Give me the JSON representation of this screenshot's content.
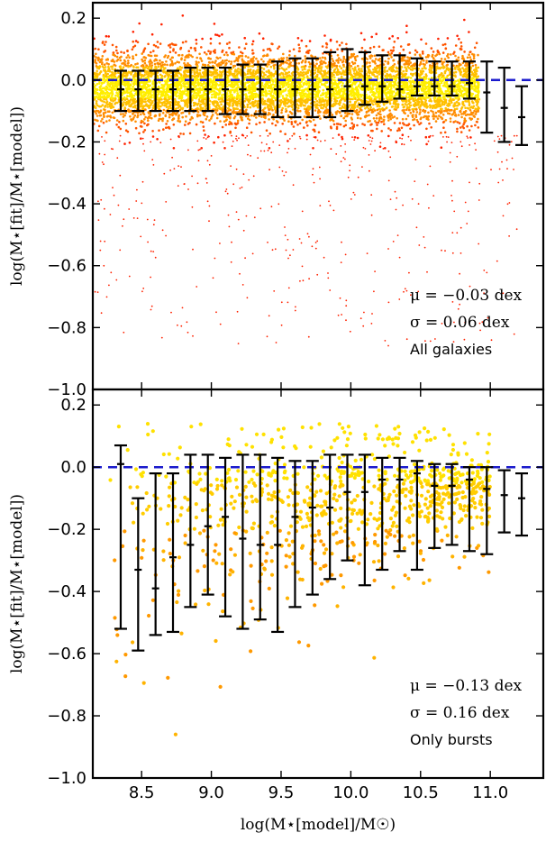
{
  "chart_data": [
    {
      "type": "scatter",
      "panel": "top",
      "xlabel": "",
      "ylabel": "log(M⋆[fit]/M⋆[model])",
      "xlim": [
        8.15,
        11.38
      ],
      "ylim": [
        -1.0,
        0.25
      ],
      "yticks": [
        0.2,
        0.0,
        -0.2,
        -0.4,
        -0.6,
        -0.8,
        -1.0
      ],
      "ytick_labels": [
        "0.2",
        "0.0",
        "−0.2",
        "−0.4",
        "−0.6",
        "−0.8",
        "−1.0"
      ],
      "reference_line": {
        "y": 0.0,
        "color": "#1a1acc",
        "style": "dashed"
      },
      "scatter_colors": [
        "#ff2200",
        "#ff5500",
        "#ff8c00",
        "#ffc000",
        "#ffee00"
      ],
      "scatter_density": "very dense band around y=0 spanning x 8.15 to 10.9, spread ±0.15, sparse outliers down to −0.85",
      "error_bars": {
        "x": [
          8.35,
          8.475,
          8.6,
          8.725,
          8.85,
          8.975,
          9.1,
          9.225,
          9.35,
          9.475,
          9.6,
          9.725,
          9.85,
          9.975,
          10.1,
          10.225,
          10.35,
          10.475,
          10.6,
          10.725,
          10.85,
          10.975,
          11.1,
          11.225
        ],
        "median": [
          -0.03,
          -0.03,
          -0.03,
          -0.03,
          -0.03,
          -0.03,
          -0.03,
          -0.03,
          -0.03,
          -0.03,
          -0.03,
          -0.03,
          -0.03,
          -0.02,
          -0.02,
          -0.02,
          -0.03,
          -0.02,
          -0.02,
          -0.02,
          -0.01,
          -0.04,
          -0.09,
          -0.12
        ],
        "upper": [
          0.03,
          0.03,
          0.03,
          0.03,
          0.04,
          0.04,
          0.04,
          0.05,
          0.05,
          0.06,
          0.07,
          0.07,
          0.09,
          0.1,
          0.09,
          0.08,
          0.08,
          0.07,
          0.06,
          0.06,
          0.06,
          0.06,
          0.04,
          -0.02
        ],
        "lower": [
          -0.1,
          -0.1,
          -0.1,
          -0.1,
          -0.1,
          -0.1,
          -0.11,
          -0.11,
          -0.11,
          -0.12,
          -0.12,
          -0.12,
          -0.12,
          -0.1,
          -0.08,
          -0.07,
          -0.06,
          -0.05,
          -0.05,
          -0.05,
          -0.06,
          -0.17,
          -0.2,
          -0.21
        ]
      },
      "annotations": [
        {
          "text": "μ = −0.03 dex",
          "style": "math"
        },
        {
          "text": "σ = 0.06 dex",
          "style": "math"
        },
        {
          "text": "All galaxies",
          "style": "text"
        }
      ]
    },
    {
      "type": "scatter",
      "panel": "bottom",
      "xlabel": "log(M⋆[model]/M☉)",
      "ylabel": "log(M⋆[fit]/M⋆[model])",
      "xlim": [
        8.15,
        11.38
      ],
      "ylim": [
        -1.0,
        0.25
      ],
      "xticks": [
        8.5,
        9.0,
        9.5,
        10.0,
        10.5,
        11.0
      ],
      "xtick_labels": [
        "8.5",
        "9.0",
        "9.5",
        "10.0",
        "10.5",
        "11.0"
      ],
      "yticks": [
        0.2,
        0.0,
        -0.2,
        -0.4,
        -0.6,
        -0.8,
        -1.0
      ],
      "ytick_labels": [
        "0.2",
        "0.0",
        "−0.2",
        "−0.4",
        "−0.6",
        "−0.8",
        "−1.0"
      ],
      "reference_line": {
        "y": 0.0,
        "color": "#1a1acc",
        "style": "dashed"
      },
      "scatter_colors": [
        "#ff9900",
        "#ffb300",
        "#ffcc00",
        "#ffe100"
      ],
      "scatter_density": "scattered points, denser near y=0 at higher x, spread down to −0.85",
      "error_bars": {
        "x": [
          8.35,
          8.475,
          8.6,
          8.725,
          8.85,
          8.975,
          9.1,
          9.225,
          9.35,
          9.475,
          9.6,
          9.725,
          9.85,
          9.975,
          10.1,
          10.225,
          10.35,
          10.475,
          10.6,
          10.725,
          10.85,
          10.975,
          11.1,
          11.225
        ],
        "median": [
          0.01,
          -0.33,
          -0.39,
          -0.29,
          -0.25,
          -0.19,
          -0.16,
          -0.23,
          -0.25,
          -0.25,
          -0.16,
          -0.13,
          -0.13,
          -0.08,
          -0.08,
          -0.04,
          -0.04,
          -0.02,
          -0.06,
          -0.06,
          -0.04,
          -0.07,
          -0.09,
          -0.1
        ],
        "upper": [
          0.07,
          -0.1,
          -0.02,
          -0.02,
          0.04,
          0.04,
          0.03,
          0.04,
          0.04,
          0.03,
          0.02,
          0.02,
          0.04,
          0.04,
          0.04,
          0.03,
          0.03,
          0.02,
          0.01,
          0.01,
          0.0,
          0.0,
          -0.01,
          -0.02
        ],
        "lower": [
          -0.52,
          -0.59,
          -0.54,
          -0.53,
          -0.45,
          -0.41,
          -0.48,
          -0.52,
          -0.49,
          -0.53,
          -0.45,
          -0.41,
          -0.36,
          -0.3,
          -0.38,
          -0.33,
          -0.27,
          -0.33,
          -0.26,
          -0.25,
          -0.27,
          -0.28,
          -0.21,
          -0.22
        ]
      },
      "annotations": [
        {
          "text": "μ = −0.13 dex",
          "style": "math"
        },
        {
          "text": "σ = 0.16 dex",
          "style": "math"
        },
        {
          "text": "Only bursts",
          "style": "text"
        }
      ]
    }
  ]
}
